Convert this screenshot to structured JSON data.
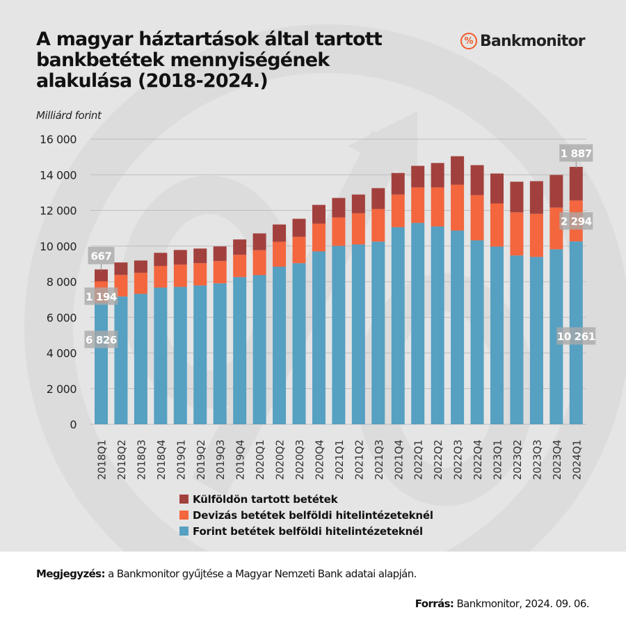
{
  "header": {
    "title_lines": [
      "A magyar háztartások által tartott",
      "bankbetétek mennyiségének",
      "alakulása (2018-2024.)"
    ],
    "logo_mark": "%",
    "logo_text": "Bankmonitor"
  },
  "colors": {
    "forint": "#56a0c2",
    "deviza": "#f4663e",
    "kulfold": "#a2403d",
    "label_box": "#a9a9a9",
    "grid": "#bdbdbd",
    "brand": "#f05a28"
  },
  "chart_data": {
    "type": "bar",
    "stacked": true,
    "title": "A magyar háztartások által tartott bankbetétek mennyiségének alakulása (2018-2024.)",
    "ylabel": "Milliárd forint",
    "xlabel": "",
    "ylim": [
      0,
      16000
    ],
    "yticks": [
      0,
      2000,
      4000,
      6000,
      8000,
      10000,
      12000,
      14000,
      16000
    ],
    "ytick_labels": [
      "0",
      "2 000",
      "4 000",
      "6 000",
      "8 000",
      "10 000",
      "12 000",
      "14 000",
      "16 000"
    ],
    "grid": true,
    "legend_position": "bottom",
    "categories": [
      "2018Q1",
      "2018Q2",
      "2018Q3",
      "2018Q4",
      "2019Q1",
      "2019Q2",
      "2019Q3",
      "2019Q4",
      "2020Q1",
      "2020Q2",
      "2020Q3",
      "2020Q4",
      "2021Q1",
      "2021Q2",
      "2021Q3",
      "2021Q4",
      "2022Q1",
      "2022Q2",
      "2022Q3",
      "2022Q4",
      "2023Q1",
      "2023Q2",
      "2023Q3",
      "2023Q4",
      "2024Q1"
    ],
    "series": [
      {
        "name": "Forint betétek belföldi hitelintézeteknél",
        "key": "forint",
        "values": [
          6826,
          7170,
          7320,
          7670,
          7710,
          7790,
          7910,
          8260,
          8370,
          8840,
          9040,
          9700,
          10010,
          10090,
          10250,
          11060,
          11300,
          11100,
          10870,
          10320,
          9970,
          9470,
          9390,
          9820,
          10261
        ]
      },
      {
        "name": "Devizás betétek belföldi hitelintézeteknél",
        "key": "deviza",
        "values": [
          1194,
          1210,
          1180,
          1210,
          1250,
          1250,
          1250,
          1250,
          1400,
          1400,
          1480,
          1560,
          1600,
          1750,
          1830,
          1830,
          1990,
          2190,
          2570,
          2540,
          2420,
          2420,
          2420,
          2340,
          2294
        ]
      },
      {
        "name": "Külföldön tartott betétek",
        "key": "kulfold",
        "values": [
          667,
          700,
          690,
          740,
          820,
          820,
          820,
          860,
          940,
          970,
          1010,
          1050,
          1090,
          1050,
          1170,
          1210,
          1210,
          1370,
          1600,
          1680,
          1680,
          1720,
          1830,
          1830,
          1887
        ]
      }
    ],
    "data_labels": [
      {
        "category": "2018Q1",
        "series": "kulfold",
        "text": "667"
      },
      {
        "category": "2018Q1",
        "series": "deviza",
        "text": "1 194"
      },
      {
        "category": "2018Q1",
        "series": "forint",
        "text": "6 826"
      },
      {
        "category": "2024Q1",
        "series": "kulfold",
        "text": "1 887"
      },
      {
        "category": "2024Q1",
        "series": "deviza",
        "text": "2 294"
      },
      {
        "category": "2024Q1",
        "series": "forint",
        "text": "10 261"
      }
    ],
    "legend": [
      {
        "key": "kulfold",
        "label": "Külföldön tartott betétek"
      },
      {
        "key": "deviza",
        "label": "Devizás betétek belföldi hitelintézeteknél"
      },
      {
        "key": "forint",
        "label": "Forint betétek belföldi hitelintézeteknél"
      }
    ]
  },
  "footer": {
    "note_label": "Megjegyzés:",
    "note_text": " a Bankmonitor gyűjtése a Magyar Nemzeti Bank adatai alapján.",
    "source_label": "Forrás:",
    "source_text": " Bankmonitor, 2024. 09. 06."
  }
}
